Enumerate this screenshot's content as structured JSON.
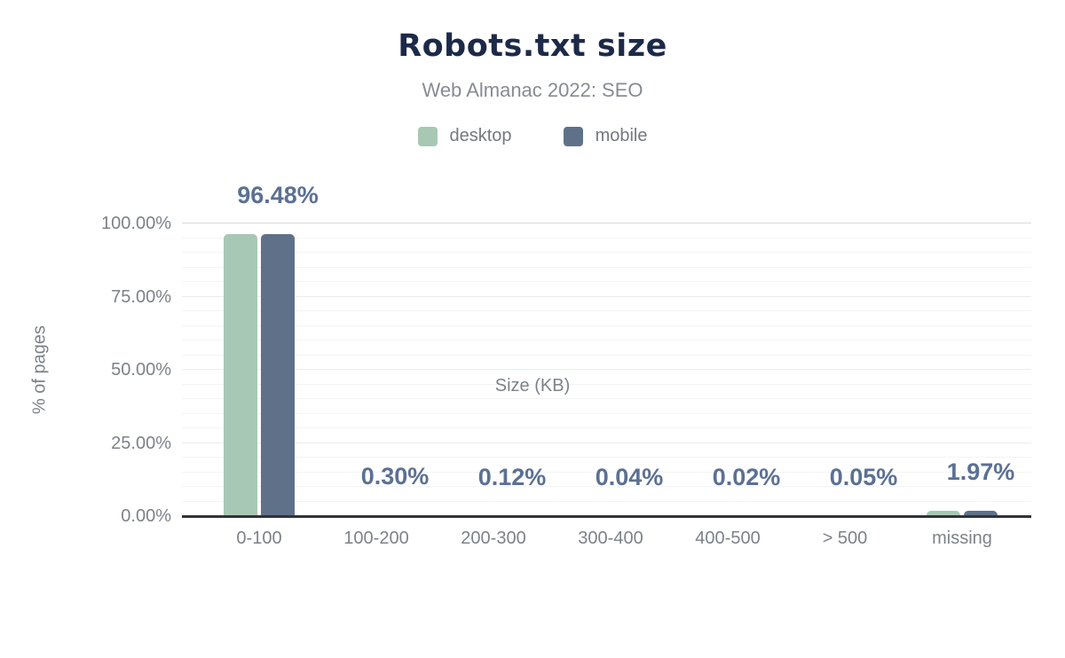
{
  "header": {
    "title": "Robots.txt size",
    "subtitle": "Web Almanac 2022: SEO"
  },
  "chart_data": {
    "type": "bar",
    "title": "Robots.txt size",
    "subtitle": "Web Almanac 2022: SEO",
    "xlabel": "Size (KB)",
    "ylabel": "% of pages",
    "categories": [
      "0-100",
      "100-200",
      "200-300",
      "300-400",
      "400-500",
      "> 500",
      "missing"
    ],
    "series": [
      {
        "name": "desktop",
        "color": "#a7c8b4",
        "values": [
          96.48,
          0.3,
          0.12,
          0.04,
          0.02,
          0.05,
          1.97
        ]
      },
      {
        "name": "mobile",
        "color": "#5e7189",
        "values": [
          96.48,
          0.3,
          0.12,
          0.04,
          0.02,
          0.05,
          1.97
        ]
      }
    ],
    "data_labels": [
      "96.48%",
      "0.30%",
      "0.12%",
      "0.04%",
      "0.02%",
      "0.05%",
      "1.97%"
    ],
    "ylim": [
      0,
      100
    ],
    "yticks_percent": [
      0,
      25,
      50,
      75,
      100
    ],
    "ytick_labels": [
      "0.00%",
      "25.00%",
      "50.00%",
      "75.00%",
      "100.00%"
    ],
    "grid": "horizontal minor lines every 5%, major every 25%, darker line at 100%",
    "legend_position": "top-center"
  },
  "colors": {
    "title": "#1c2a49",
    "subtitle": "#878c93",
    "data_label": "#5b7093",
    "tick_text": "#7d8289",
    "axis_line": "#303338",
    "grid_minor": "#f4f4f5",
    "grid_major": "#eceded",
    "grid_top": "#d8dade",
    "desktop": "#a7c8b4",
    "mobile": "#5e7189"
  }
}
